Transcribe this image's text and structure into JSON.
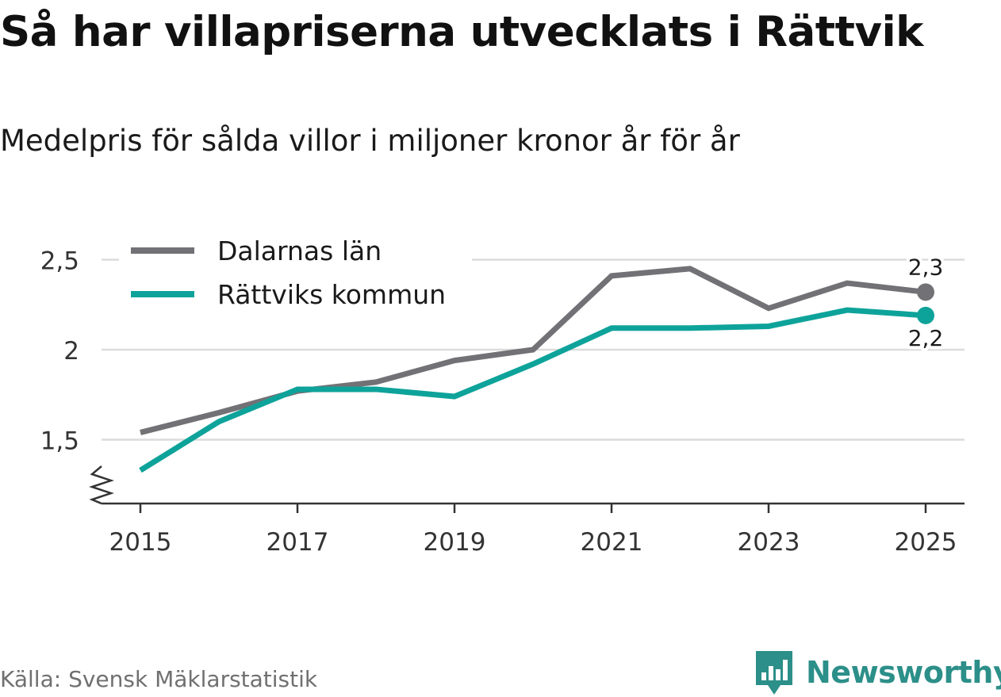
{
  "chart_data": {
    "type": "line",
    "title": "Så har villapriserna utvecklats i Rättvik",
    "subtitle": "Medelpris för sålda villor i miljoner kronor år för år",
    "source": "Källa: Svensk Mäklarstatistik",
    "brand": "Newsworthy",
    "x": [
      2015,
      2016,
      2017,
      2018,
      2019,
      2020,
      2021,
      2022,
      2023,
      2024,
      2025
    ],
    "x_ticks": [
      "2015",
      "2017",
      "2019",
      "2021",
      "2023",
      "2025"
    ],
    "x_tick_values": [
      2015,
      2017,
      2019,
      2021,
      2023,
      2025
    ],
    "y_ticks": [
      "2,5",
      "2",
      "1,5"
    ],
    "y_tick_values": [
      2.5,
      2.0,
      1.5
    ],
    "ylim": [
      1.14,
      2.56
    ],
    "xlim": [
      2014.5,
      2025.5
    ],
    "grid": true,
    "axis_break": true,
    "legend_position": "top-left",
    "series": [
      {
        "name": "Dalarnas län",
        "color": "#727175",
        "values": [
          1.54,
          1.65,
          1.77,
          1.82,
          1.94,
          2.0,
          2.41,
          2.45,
          2.23,
          2.37,
          2.32
        ],
        "end_label": "2,3",
        "end_label_side": "above"
      },
      {
        "name": "Rättviks kommun",
        "color": "#0ea39a",
        "values": [
          1.33,
          1.6,
          1.78,
          1.78,
          1.74,
          1.92,
          2.12,
          2.12,
          2.13,
          2.22,
          2.19
        ],
        "end_label": "2,2",
        "end_label_side": "below"
      }
    ]
  }
}
